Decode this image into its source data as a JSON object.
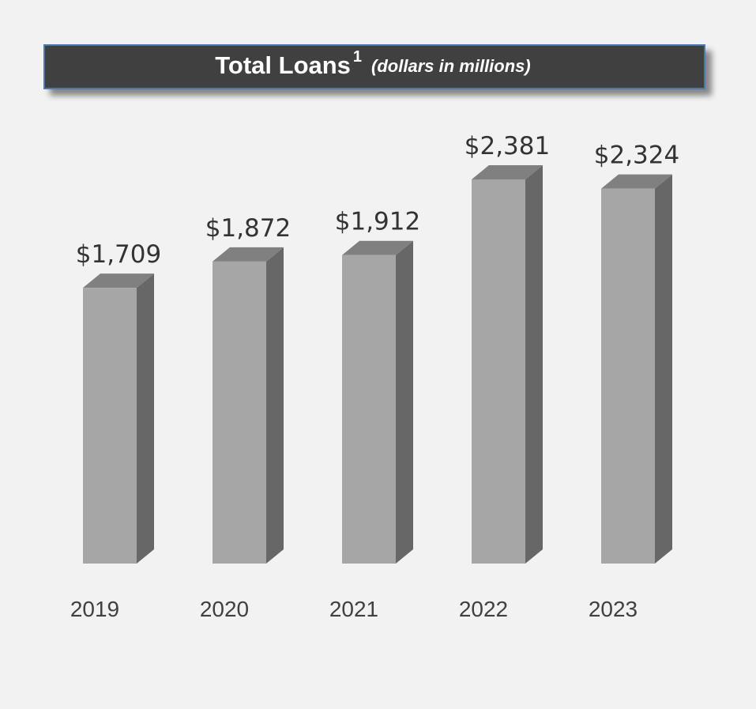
{
  "chart_data": {
    "type": "bar3d",
    "title": "Total Loans",
    "title_footnote": "1",
    "subtitle": "(dollars in millions)",
    "categories": [
      "2019",
      "2020",
      "2021",
      "2022",
      "2023"
    ],
    "values": [
      1709,
      1872,
      1912,
      2381,
      2324
    ],
    "value_labels": [
      "$1,709",
      "$1,872",
      "$1,912",
      "$2,381",
      "$2,324"
    ],
    "color": "#a6a6a6"
  }
}
